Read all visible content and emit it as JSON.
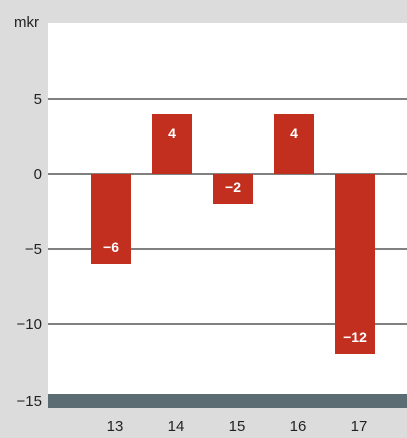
{
  "chart_data": {
    "type": "bar",
    "ylabel": "mkr",
    "categories": [
      "13",
      "14",
      "15",
      "16",
      "17"
    ],
    "values": [
      -6,
      4,
      -2,
      4,
      -12
    ],
    "data_labels": [
      "−6",
      "4",
      "−2",
      "4",
      "−12"
    ],
    "yticks": [
      5,
      0,
      -5,
      -10,
      -15
    ],
    "ytick_labels": [
      "5",
      "0",
      "−5",
      "−10",
      "−15"
    ],
    "ylim": [
      -15,
      10
    ],
    "grid": true,
    "bar_color": "#c22f1f",
    "axis_band_color": "#5b6d73",
    "plot_bg": "#ffffff",
    "page_bg": "#dcdcdc"
  }
}
